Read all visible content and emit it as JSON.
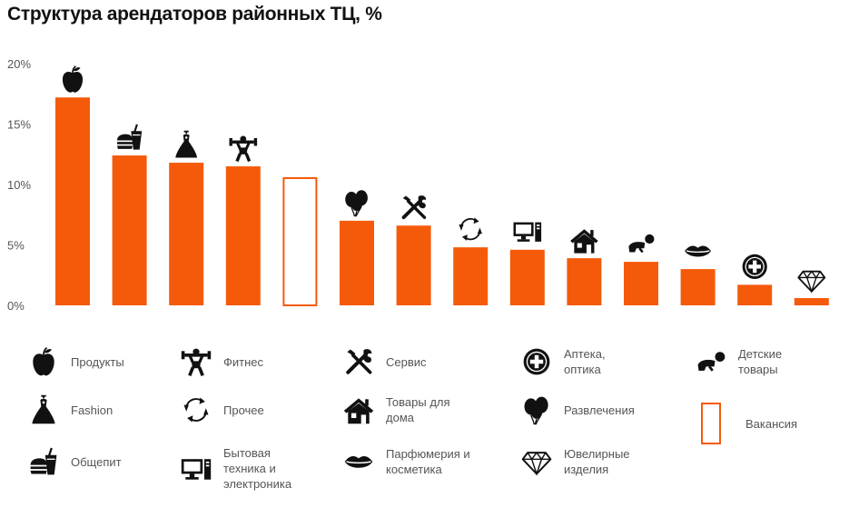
{
  "title": "Структура арендаторов районных ТЦ, %",
  "colors": {
    "bar": "#f55a0a",
    "text": "#111111",
    "tick": "#555555"
  },
  "chart_data": {
    "type": "bar",
    "title": "Структура арендаторов районных ТЦ, %",
    "xlabel": "",
    "ylabel": "",
    "ylim": [
      0,
      20
    ],
    "yticks": [
      "0%",
      "5%",
      "10%",
      "15%",
      "20%"
    ],
    "grid": false,
    "legend_position": "bottom",
    "categories": [
      "Продукты",
      "Общепит",
      "Fashion",
      "Фитнес",
      "Вакансия",
      "Развлечения",
      "Сервис",
      "Прочее",
      "Бытовая техника и электроника",
      "Товары для дома",
      "Детские товары",
      "Парфюмерия и косметика",
      "Аптека, оптика",
      "Ювелирные изделия"
    ],
    "values": [
      17.2,
      12.4,
      11.8,
      11.5,
      10.6,
      7.0,
      6.6,
      4.8,
      4.6,
      3.9,
      3.6,
      3.0,
      1.7,
      0.6
    ],
    "icons": [
      "apple-icon",
      "fastfood-icon",
      "dress-icon",
      "fitness-icon",
      "",
      "balloons-icon",
      "tools-icon",
      "recycle-icon",
      "computer-icon",
      "house-icon",
      "baby-icon",
      "lips-icon",
      "medical-cross-icon",
      "diamond-icon"
    ],
    "outline_categories": [
      "Вакансия"
    ]
  },
  "legend": {
    "col1": [
      {
        "label": "Продукты",
        "icon": "apple-icon"
      },
      {
        "label": "Fashion",
        "icon": "dress-icon"
      },
      {
        "label": "Общепит",
        "icon": "fastfood-icon"
      }
    ],
    "col2": [
      {
        "label": "Фитнес",
        "icon": "fitness-icon"
      },
      {
        "label": "Прочее",
        "icon": "recycle-icon"
      },
      {
        "label": "Бытовая\nтехника и\nэлектроника",
        "icon": "computer-icon"
      }
    ],
    "col3": [
      {
        "label": "Сервис",
        "icon": "tools-icon"
      },
      {
        "label": "Товары для\nдома",
        "icon": "house-icon"
      },
      {
        "label": "Парфюмерия и\nкосметика",
        "icon": "lips-icon"
      }
    ],
    "col4": [
      {
        "label": "Аптека,\nоптика",
        "icon": "medical-cross-icon"
      },
      {
        "label": "Развлечения",
        "icon": "balloons-icon"
      },
      {
        "label": "Ювелирные\nизделия",
        "icon": "diamond-icon"
      }
    ],
    "col5": [
      {
        "label": "Детские\nтовары",
        "icon": "baby-icon"
      },
      {
        "label": "Вакансия",
        "icon": "vacancy-box"
      }
    ]
  }
}
